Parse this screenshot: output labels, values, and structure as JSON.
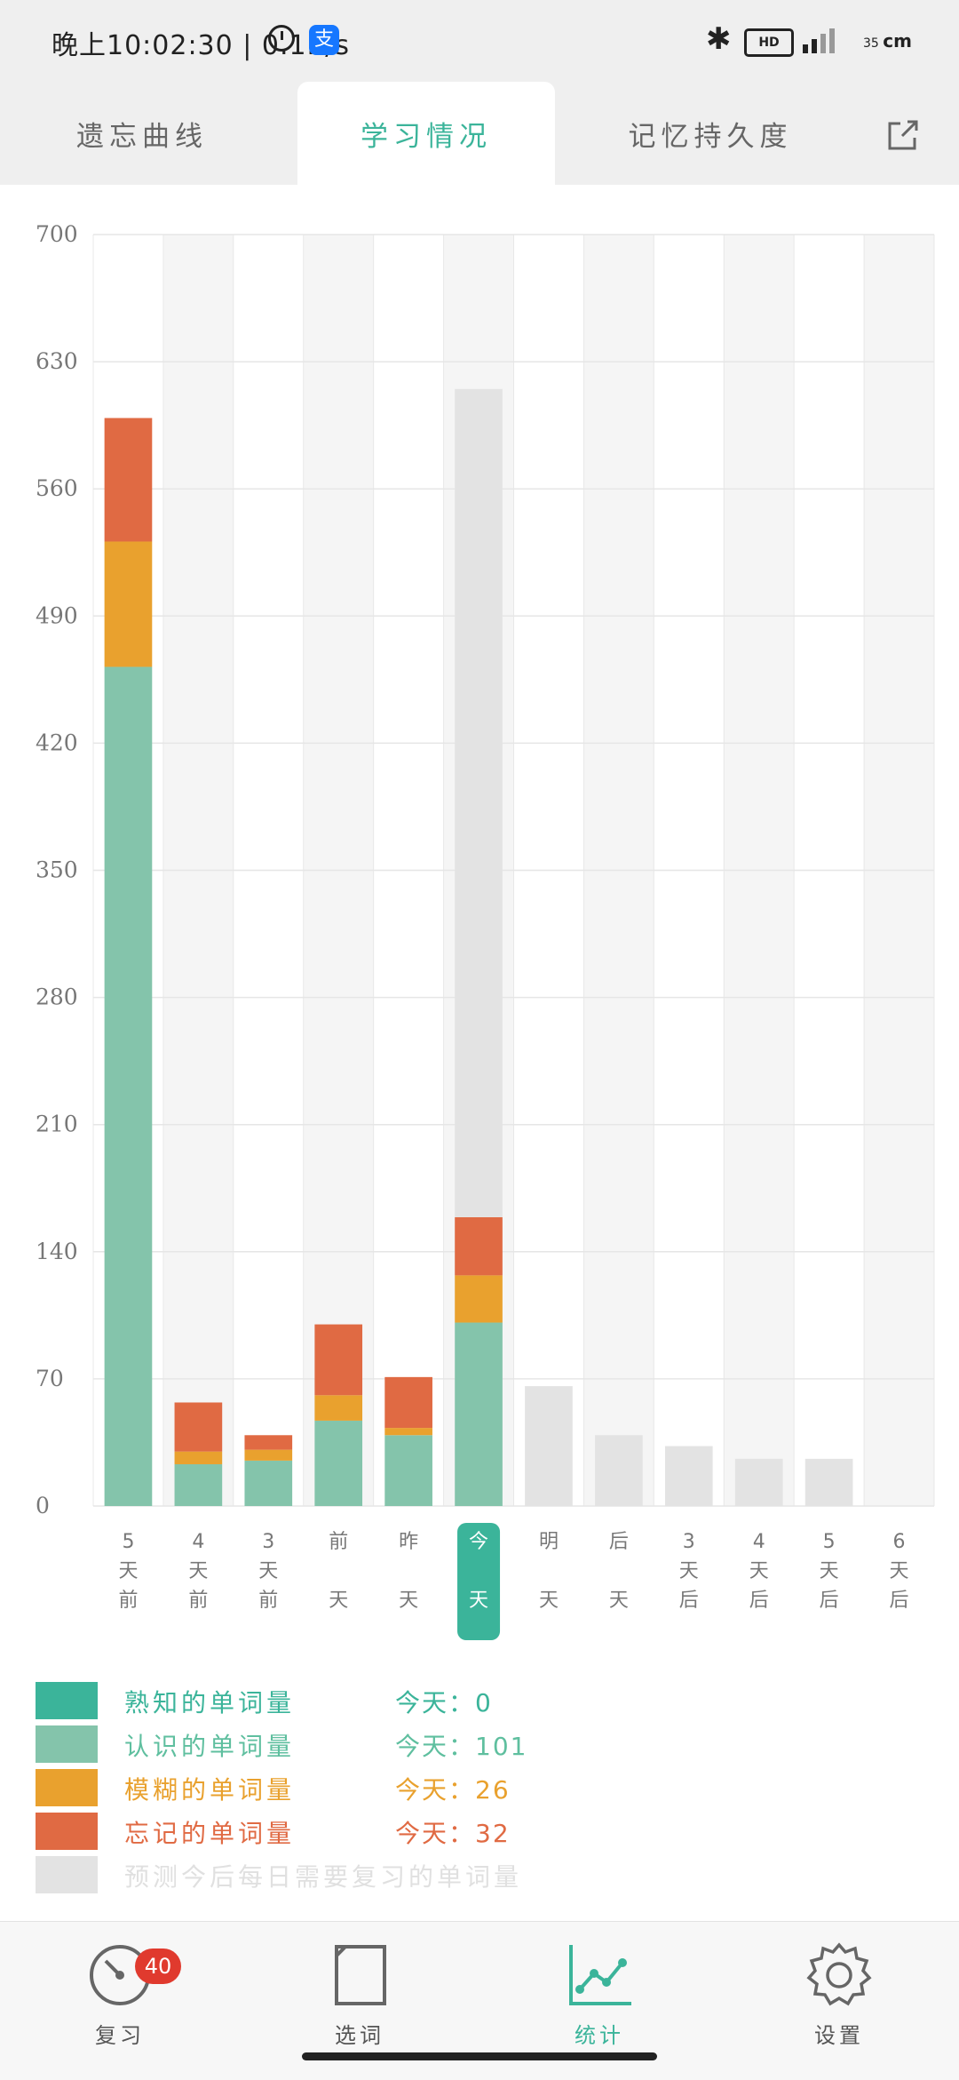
{
  "status_bar": {
    "time_text": "晚上10:02:30 | 0.1K/s",
    "bluetooth": "bluetooth-icon",
    "hd_label": "HD",
    "battery_text": "35",
    "battery_unit": "cm"
  },
  "tabs": [
    {
      "label": "遗忘曲线"
    },
    {
      "label": "学习情况"
    },
    {
      "label": "记忆持久度"
    }
  ],
  "colors": {
    "accent": "#3bb49a",
    "known": "#3bb49a",
    "recognized": "#84c4ab",
    "fuzzy": "#e9a12e",
    "forgotten": "#e06a43",
    "predicted": "#e3e3e3"
  },
  "chart_data": {
    "type": "bar",
    "stacked": true,
    "ylim": [
      0,
      700
    ],
    "yticks": [
      0,
      70,
      140,
      210,
      280,
      350,
      420,
      490,
      560,
      630,
      700
    ],
    "categories": [
      [
        "5",
        "天",
        "前"
      ],
      [
        "4",
        "天",
        "前"
      ],
      [
        "3",
        "天",
        "前"
      ],
      [
        "前",
        "天"
      ],
      [
        "昨",
        "天"
      ],
      [
        "今",
        "天"
      ],
      [
        "明",
        "天"
      ],
      [
        "后",
        "天"
      ],
      [
        "3",
        "天",
        "后"
      ],
      [
        "4",
        "天",
        "后"
      ],
      [
        "5",
        "天",
        "后"
      ],
      [
        "6",
        "天",
        "后"
      ]
    ],
    "highlight_index": 5,
    "series": [
      {
        "name": "熟知的单词量",
        "key": "known",
        "values": [
          0,
          0,
          0,
          0,
          0,
          0,
          0,
          0,
          0,
          0,
          0,
          0
        ]
      },
      {
        "name": "认识的单词量",
        "key": "recognized",
        "values": [
          462,
          23,
          25,
          47,
          39,
          101,
          0,
          0,
          0,
          0,
          0,
          0
        ]
      },
      {
        "name": "模糊的单词量",
        "key": "fuzzy",
        "values": [
          69,
          7,
          6,
          14,
          4,
          26,
          0,
          0,
          0,
          0,
          0,
          0
        ]
      },
      {
        "name": "忘记的单词量",
        "key": "forgotten",
        "values": [
          68,
          27,
          8,
          39,
          28,
          32,
          0,
          0,
          0,
          0,
          0,
          0
        ]
      },
      {
        "name": "预测今后每日需要复习的单词量",
        "key": "predicted",
        "values": [
          0,
          0,
          0,
          0,
          0,
          456,
          66,
          39,
          33,
          26,
          26,
          0
        ]
      }
    ]
  },
  "legend": [
    {
      "label": "熟知的单词量",
      "value_label": "今天：0",
      "key": "known"
    },
    {
      "label": "认识的单词量",
      "value_label": "今天：101",
      "key": "recognized"
    },
    {
      "label": "模糊的单词量",
      "value_label": "今天：26",
      "key": "fuzzy"
    },
    {
      "label": "忘记的单词量",
      "value_label": "今天：32",
      "key": "forgotten"
    },
    {
      "label": "预测今后每日需要复习的单词量",
      "value_label": "",
      "key": "predicted"
    }
  ],
  "nav": [
    {
      "label": "复习",
      "icon": "gauge-icon",
      "badge": "40"
    },
    {
      "label": "选词",
      "icon": "book-icon"
    },
    {
      "label": "统计",
      "icon": "line-chart-icon"
    },
    {
      "label": "设置",
      "icon": "gear-icon"
    }
  ]
}
